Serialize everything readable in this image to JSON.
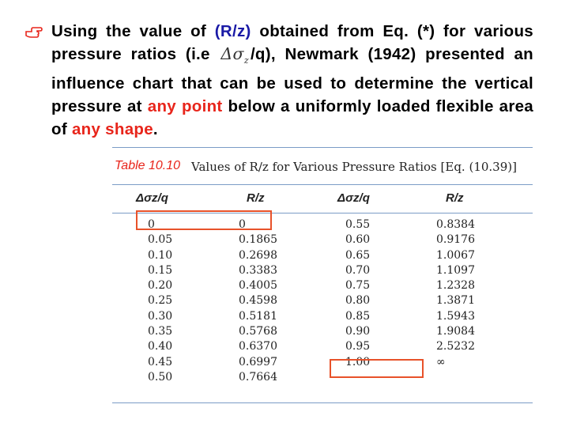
{
  "bullet": {
    "icon": "hand-pointing-icon",
    "seg1": "Using the value of ",
    "seg2": "(R/z)",
    "seg3": " obtained from Eq. (*) for various pressure ratios (i.e ",
    "math_symbol": "Δσ",
    "math_sub": "z",
    "seg4": "/q), Newmark (1942) presented an influence chart that can be used to determine the vertical pressure at ",
    "seg5": "any point",
    "seg6": " below a uniformly loaded flexible area of ",
    "seg7": "any shape",
    "seg8": "."
  },
  "table": {
    "number": "Table 10.10",
    "caption": "Values of R/z for Various Pressure Ratios [Eq. (10.39)]",
    "headers": [
      "Δσz/q",
      "R/z",
      "Δσz/q",
      "R/z"
    ],
    "rows": [
      [
        "0",
        "0",
        "0.55",
        "0.8384"
      ],
      [
        "0.05",
        "0.1865",
        "0.60",
        "0.9176"
      ],
      [
        "0.10",
        "0.2698",
        "0.65",
        "1.0067"
      ],
      [
        "0.15",
        "0.3383",
        "0.70",
        "1.1097"
      ],
      [
        "0.20",
        "0.4005",
        "0.75",
        "1.2328"
      ],
      [
        "0.25",
        "0.4598",
        "0.80",
        "1.3871"
      ],
      [
        "0.30",
        "0.5181",
        "0.85",
        "1.5943"
      ],
      [
        "0.35",
        "0.5768",
        "0.90",
        "1.9084"
      ],
      [
        "0.40",
        "0.6370",
        "0.95",
        "2.5232"
      ],
      [
        "0.45",
        "0.6997",
        "1.00",
        "∞"
      ],
      [
        "0.50",
        "0.7664",
        "",
        ""
      ]
    ]
  },
  "colors": {
    "highlight": "#e8522a",
    "accent_blue": "#1a1aa6",
    "accent_red": "#e8251b",
    "rule": "#7b9cc6"
  }
}
